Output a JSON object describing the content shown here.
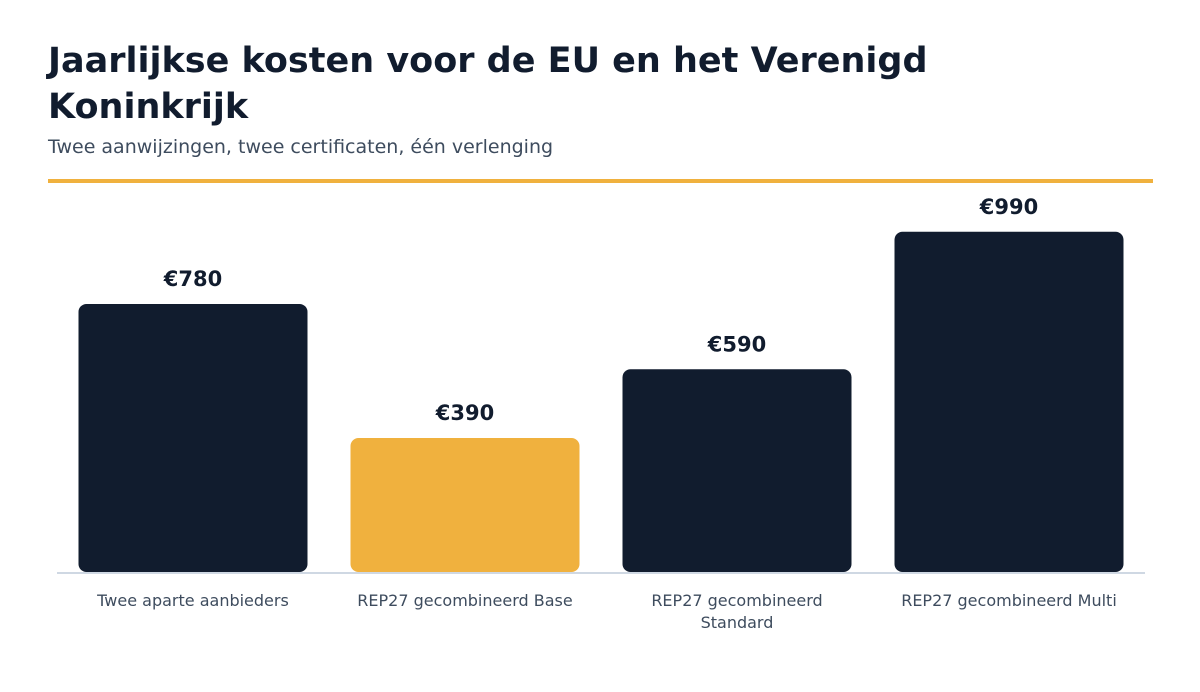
{
  "title": "Jaarlijkse kosten voor de EU en het Verenigd Koninkrijk",
  "subtitle": "Twee aanwijzingen, twee certificaten, één verlenging",
  "colors": {
    "bar_default": "#111c2e",
    "bar_highlight": "#f0b13e",
    "accent_rule": "#f0b13e",
    "baseline": "#cfd8e3"
  },
  "chart_data": {
    "type": "bar",
    "title": "Jaarlijkse kosten voor de EU en het Verenigd Koninkrijk",
    "subtitle": "Twee aanwijzingen, twee certificaten, één verlenging",
    "categories": [
      [
        "Twee aparte aanbieders"
      ],
      [
        "REP27 gecombineerd Base"
      ],
      [
        "REP27 gecombineerd",
        "Standard"
      ],
      [
        "REP27 gecombineerd Multi"
      ]
    ],
    "values": [
      780,
      390,
      590,
      990
    ],
    "value_labels": [
      "€780",
      "€390",
      "€590",
      "€990"
    ],
    "highlight_index": 1,
    "ylim": [
      0,
      1100
    ],
    "grid": false,
    "legend": false
  }
}
